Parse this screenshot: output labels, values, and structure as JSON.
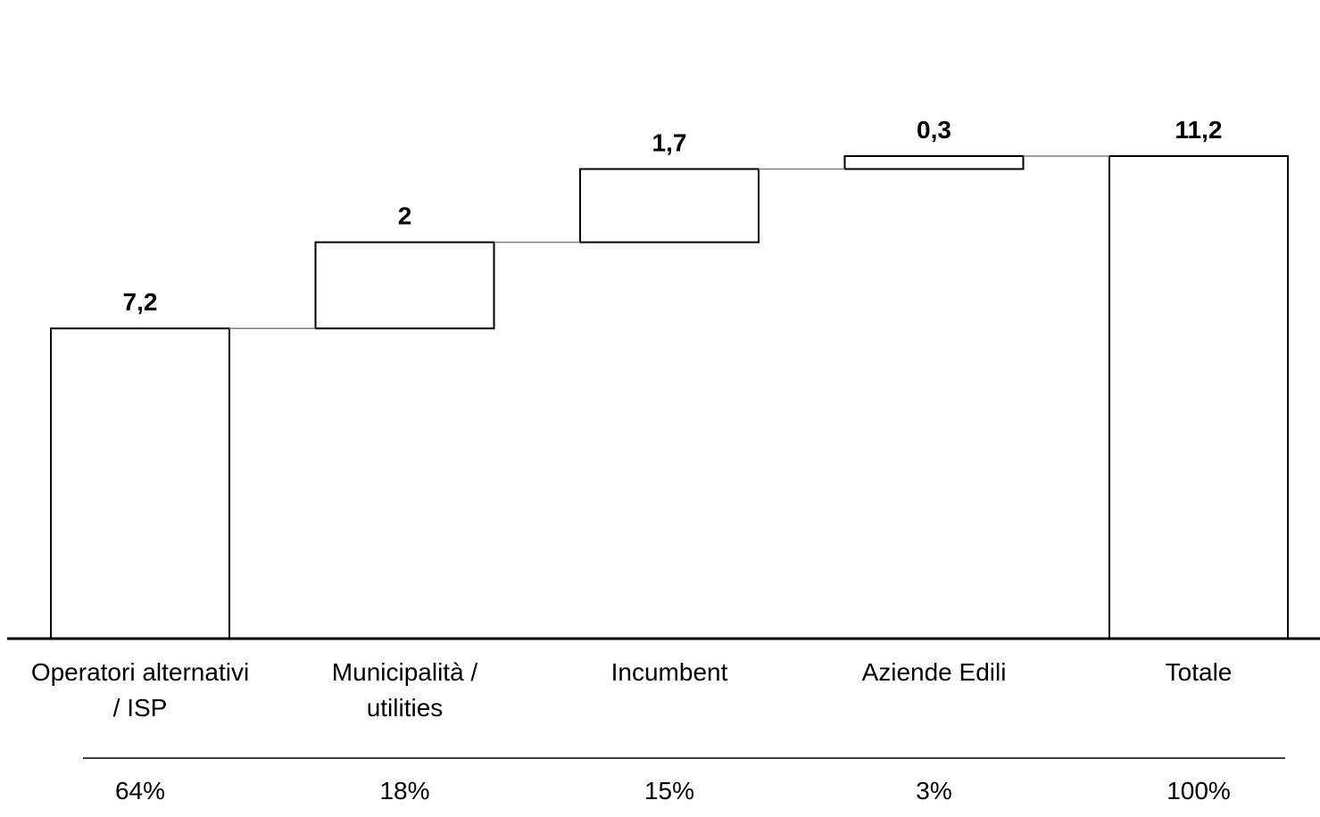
{
  "chart_data": {
    "type": "bar",
    "subtype": "waterfall",
    "title": "",
    "xlabel": "",
    "ylabel": "",
    "ylim": [
      0,
      11.2
    ],
    "grid": false,
    "legend": "none",
    "categories": [
      "Operatori alternativi / ISP",
      "Municipalità / utilities",
      "Incumbent",
      "Aziende Edili",
      "Totale"
    ],
    "category_lines": [
      [
        "Operatori alternativi",
        "/ ISP"
      ],
      [
        "Municipalità /",
        "utilities"
      ],
      [
        "Incumbent"
      ],
      [
        "Aziende Edili"
      ],
      [
        "Totale"
      ]
    ],
    "values": [
      7.2,
      2,
      1.7,
      0.3,
      11.2
    ],
    "is_total": [
      false,
      false,
      false,
      false,
      true
    ],
    "value_labels": [
      "7,2",
      "2",
      "1,7",
      "0,3",
      "11,2"
    ],
    "shares": [
      "64%",
      "18%",
      "15%",
      "3%",
      "100%"
    ],
    "colors": {
      "bar_fill": "#ffffff",
      "bar_stroke": "#000000",
      "connector": "#808080",
      "axis": "#000000"
    }
  }
}
